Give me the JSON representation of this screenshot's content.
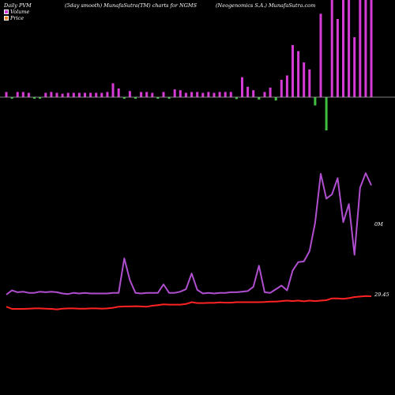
{
  "header": {
    "left": "Daily PVM",
    "middle": "(5day smooth) MunafaSutra(TM) charts for NGMS",
    "right": "(Neogenomics S.A.) MunafaSutra.com"
  },
  "legend": [
    {
      "label": "Volume",
      "color": "#d63bd6"
    },
    {
      "label": "Price",
      "color": "#f07f2a"
    }
  ],
  "right_labels": {
    "volume": "0M",
    "price": "29.45"
  },
  "colors": {
    "background": "#000000",
    "volume_up": "#d63bd6",
    "volume_down": "#3fbf3f",
    "volume_line": "#b04ed0",
    "price_line": "#ff2222",
    "axis": "#aaaaaa"
  },
  "chart_data": {
    "type": "line",
    "title": "",
    "xlabel": "",
    "ylabel": "",
    "x_count": 66,
    "series": [
      {
        "name": "Volume",
        "role": "volume_line",
        "values": [
          0.9,
          0.97,
          0.94,
          0.95,
          0.93,
          0.93,
          0.95,
          0.94,
          0.95,
          0.94,
          0.92,
          0.91,
          0.93,
          0.92,
          0.93,
          0.92,
          0.92,
          0.92,
          0.92,
          0.93,
          0.93,
          1.5,
          1.14,
          0.93,
          0.92,
          0.93,
          0.93,
          0.93,
          1.07,
          0.93,
          0.93,
          0.95,
          0.99,
          1.25,
          0.98,
          0.92,
          0.93,
          0.92,
          0.93,
          0.93,
          0.94,
          0.94,
          0.95,
          0.96,
          1.03,
          1.38,
          0.94,
          0.93,
          0.99,
          1.05,
          0.97,
          1.3,
          1.44,
          1.45,
          1.62,
          2.09,
          2.9,
          2.49,
          2.56,
          2.83,
          2.1,
          2.4,
          1.56,
          2.67,
          2.91,
          2.71
        ]
      },
      {
        "name": "Price",
        "role": "price_line",
        "values": [
          28.95,
          28.85,
          28.85,
          28.85,
          28.86,
          28.87,
          28.87,
          28.86,
          28.85,
          28.83,
          28.86,
          28.87,
          28.87,
          28.86,
          28.86,
          28.87,
          28.87,
          28.86,
          28.87,
          28.9,
          28.95,
          28.96,
          28.96,
          28.97,
          28.96,
          28.95,
          28.99,
          29.02,
          29.05,
          29.04,
          29.04,
          29.04,
          29.07,
          29.15,
          29.11,
          29.11,
          29.12,
          29.12,
          29.14,
          29.13,
          29.13,
          29.15,
          29.15,
          29.15,
          29.15,
          29.15,
          29.16,
          29.18,
          29.18,
          29.2,
          29.22,
          29.2,
          29.22,
          29.19,
          29.22,
          29.2,
          29.22,
          29.24,
          29.32,
          29.32,
          29.3,
          29.33,
          29.38,
          29.4,
          29.42,
          29.41
        ]
      }
    ],
    "volume_bars": {
      "values": [
        0.6,
        0.6,
        0.6,
        0.6,
        0.5,
        0.6,
        0.5,
        0.5,
        0.6,
        0.5,
        0.4,
        0.5,
        0.5,
        0.5,
        0.5,
        0.5,
        0.5,
        0.5,
        0.6,
        1.6,
        1.0,
        0.7,
        0.7,
        0.5,
        0.6,
        0.6,
        0.5,
        0.5,
        0.6,
        0.5,
        0.9,
        0.8,
        0.5,
        0.6,
        0.6,
        0.5,
        0.6,
        0.5,
        0.6,
        0.6,
        0.6,
        0.8,
        2.3,
        1.2,
        0.8,
        1.0,
        0.6,
        1.1,
        1.4,
        2.0,
        2.5,
        6.0,
        5.3,
        4.0,
        3.2,
        3.5,
        9.6,
        14.0,
        14.0,
        9.0,
        14.0,
        14.0,
        6.9,
        14.0,
        11.9,
        14.0
      ],
      "down": [
        false,
        true,
        false,
        false,
        false,
        true,
        true,
        false,
        false,
        false,
        false,
        false,
        false,
        false,
        false,
        false,
        false,
        false,
        false,
        false,
        false,
        true,
        false,
        true,
        false,
        false,
        false,
        true,
        false,
        true,
        false,
        false,
        false,
        false,
        false,
        false,
        false,
        false,
        false,
        false,
        false,
        true,
        false,
        false,
        false,
        true,
        false,
        false,
        true,
        false,
        false,
        false,
        false,
        false,
        false,
        true,
        false,
        true,
        false,
        false,
        false,
        false,
        false,
        false,
        false,
        false
      ]
    }
  }
}
